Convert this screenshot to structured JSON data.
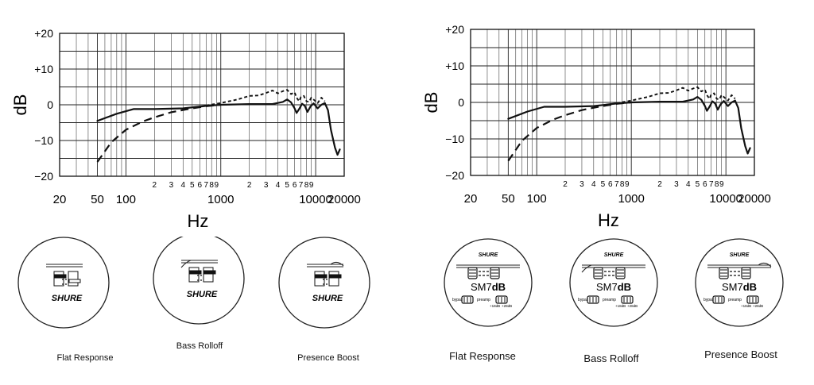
{
  "chart_data": [
    {
      "type": "line",
      "panel": "left",
      "ylabel": "dB",
      "xlabel": "Hz",
      "x_scale": "log",
      "xlim": [
        20,
        20000
      ],
      "ylim": [
        -20,
        20
      ],
      "grid": true,
      "ytick_labels": [
        "+20",
        "+10",
        "0",
        "−10",
        "−20"
      ],
      "ytick_values": [
        20,
        10,
        0,
        -10,
        -20
      ],
      "xtick_major_labels": [
        "20",
        "50",
        "100",
        "1000",
        "10000",
        "20000"
      ],
      "xtick_major_values": [
        20,
        50,
        100,
        1000,
        10000,
        20000
      ],
      "xtick_minor_labels": [
        "2",
        "3",
        "4",
        "5",
        "6",
        "7",
        "8",
        "9",
        "2",
        "3",
        "4",
        "5",
        "6",
        "7",
        "8",
        "9"
      ],
      "xtick_minor_values": [
        200,
        300,
        400,
        500,
        600,
        700,
        800,
        900,
        2000,
        3000,
        4000,
        5000,
        6000,
        7000,
        8000,
        9000
      ],
      "series": [
        {
          "style": "solid",
          "points": [
            [
              50,
              -4.5
            ],
            [
              80,
              -2.5
            ],
            [
              120,
              -1.2
            ],
            [
              200,
              -1.2
            ],
            [
              400,
              -1
            ],
            [
              700,
              -0.3
            ],
            [
              1000,
              0
            ],
            [
              2000,
              0.2
            ],
            [
              3500,
              0.2
            ],
            [
              4500,
              0.8
            ],
            [
              5000,
              1.5
            ],
            [
              5500,
              0.7
            ],
            [
              6000,
              -1
            ],
            [
              6300,
              -2.3
            ],
            [
              6700,
              -1.2
            ],
            [
              7200,
              0.3
            ],
            [
              7700,
              -0.3
            ],
            [
              8200,
              -2
            ],
            [
              8800,
              -0.5
            ],
            [
              9500,
              0.4
            ],
            [
              10500,
              -1
            ],
            [
              11500,
              0
            ],
            [
              12500,
              0.5
            ],
            [
              13500,
              -1.5
            ],
            [
              14500,
              -7
            ],
            [
              16000,
              -12
            ],
            [
              17000,
              -14
            ],
            [
              18000,
              -12.5
            ]
          ]
        },
        {
          "style": "long-dash",
          "points": [
            [
              50,
              -16
            ],
            [
              70,
              -10.5
            ],
            [
              100,
              -7
            ],
            [
              150,
              -4.7
            ],
            [
              200,
              -3.5
            ],
            [
              300,
              -2.1
            ],
            [
              450,
              -1.2
            ],
            [
              700,
              -0.4
            ],
            [
              1000,
              0
            ]
          ]
        },
        {
          "style": "short-dash",
          "points": [
            [
              700,
              -0.2
            ],
            [
              1000,
              0.5
            ],
            [
              1500,
              1.5
            ],
            [
              2000,
              2.5
            ],
            [
              2500,
              2.6
            ],
            [
              3000,
              3.3
            ],
            [
              3500,
              4
            ],
            [
              4000,
              3.2
            ],
            [
              4500,
              3.8
            ],
            [
              5000,
              4.2
            ],
            [
              5500,
              3
            ],
            [
              6000,
              3.5
            ],
            [
              6300,
              2
            ],
            [
              6700,
              1
            ],
            [
              7000,
              2.2
            ],
            [
              7500,
              2.5
            ],
            [
              8000,
              1
            ],
            [
              8500,
              0.8
            ],
            [
              9000,
              2
            ],
            [
              9500,
              1.5
            ],
            [
              10500,
              0.5
            ],
            [
              11500,
              2
            ],
            [
              12500,
              1
            ]
          ]
        }
      ]
    },
    {
      "type": "line",
      "panel": "right",
      "ylabel": "dB",
      "xlabel": "Hz",
      "x_scale": "log",
      "xlim": [
        20,
        20000
      ],
      "ylim": [
        -20,
        20
      ],
      "grid": true,
      "ytick_labels": [
        "+20",
        "+10",
        "0",
        "−10",
        "−20"
      ],
      "ytick_values": [
        20,
        10,
        0,
        -10,
        -20
      ],
      "xtick_major_labels": [
        "20",
        "50",
        "100",
        "1000",
        "10000",
        "20000"
      ],
      "xtick_major_values": [
        20,
        50,
        100,
        1000,
        10000,
        20000
      ],
      "xtick_minor_labels": [
        "2",
        "3",
        "4",
        "5",
        "6",
        "7",
        "8",
        "9",
        "2",
        "3",
        "4",
        "5",
        "6",
        "7",
        "8",
        "9"
      ],
      "xtick_minor_values": [
        200,
        300,
        400,
        500,
        600,
        700,
        800,
        900,
        2000,
        3000,
        4000,
        5000,
        6000,
        7000,
        8000,
        9000
      ],
      "series": [
        {
          "style": "solid",
          "points": [
            [
              50,
              -4.5
            ],
            [
              80,
              -2.5
            ],
            [
              120,
              -1.2
            ],
            [
              200,
              -1.2
            ],
            [
              400,
              -1
            ],
            [
              700,
              -0.3
            ],
            [
              1000,
              0
            ],
            [
              2000,
              0.2
            ],
            [
              3500,
              0.2
            ],
            [
              4500,
              0.8
            ],
            [
              5000,
              1.5
            ],
            [
              5500,
              0.7
            ],
            [
              6000,
              -1
            ],
            [
              6300,
              -2.3
            ],
            [
              6700,
              -1.2
            ],
            [
              7200,
              0.3
            ],
            [
              7700,
              -0.3
            ],
            [
              8200,
              -2
            ],
            [
              8800,
              -0.5
            ],
            [
              9500,
              0.4
            ],
            [
              10500,
              -1
            ],
            [
              11500,
              0
            ],
            [
              12500,
              0.5
            ],
            [
              13500,
              -1.5
            ],
            [
              14500,
              -7
            ],
            [
              16000,
              -12
            ],
            [
              17000,
              -14
            ],
            [
              18000,
              -12.5
            ]
          ]
        },
        {
          "style": "long-dash",
          "points": [
            [
              50,
              -16
            ],
            [
              70,
              -10.5
            ],
            [
              100,
              -7
            ],
            [
              150,
              -4.7
            ],
            [
              200,
              -3.5
            ],
            [
              300,
              -2.1
            ],
            [
              450,
              -1.2
            ],
            [
              700,
              -0.4
            ],
            [
              1000,
              0
            ]
          ]
        },
        {
          "style": "short-dash",
          "points": [
            [
              700,
              -0.2
            ],
            [
              1000,
              0.5
            ],
            [
              1500,
              1.5
            ],
            [
              2000,
              2.5
            ],
            [
              2500,
              2.6
            ],
            [
              3000,
              3.3
            ],
            [
              3500,
              4
            ],
            [
              4000,
              3.2
            ],
            [
              4500,
              3.8
            ],
            [
              5000,
              4.2
            ],
            [
              5500,
              3
            ],
            [
              6000,
              3.5
            ],
            [
              6300,
              2
            ],
            [
              6700,
              1
            ],
            [
              7000,
              2.2
            ],
            [
              7500,
              2.5
            ],
            [
              8000,
              1
            ],
            [
              8500,
              0.8
            ],
            [
              9000,
              2
            ],
            [
              9500,
              1.5
            ],
            [
              10500,
              0.5
            ],
            [
              11500,
              2
            ],
            [
              12500,
              1
            ]
          ]
        }
      ]
    }
  ],
  "left_switches": {
    "brand": "SHURE",
    "captions": [
      "Flat Response",
      "Bass Rolloff",
      "Presence Boost"
    ],
    "positions": [
      "flat",
      "bass-rolloff",
      "presence-boost"
    ]
  },
  "right_switches": {
    "brand": "SHURE",
    "model_prefix": "SM7",
    "model_suffix": "dB",
    "bypass_label": "bypass",
    "preamp_label": "preamp",
    "gain_low": "+18dB",
    "gain_high": "+28dB",
    "captions": [
      "Flat Response",
      "Bass Rolloff",
      "Presence Boost"
    ],
    "positions": [
      "flat",
      "bass-rolloff",
      "presence-boost"
    ]
  }
}
